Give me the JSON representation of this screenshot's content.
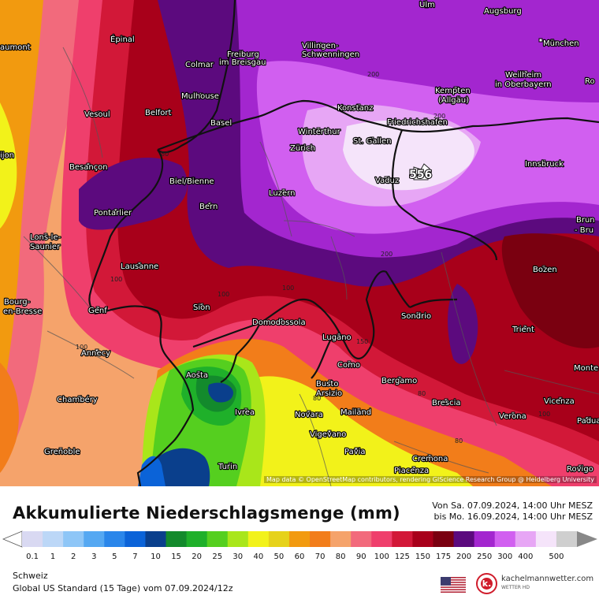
{
  "map": {
    "attribution": "Map data © OpenStreetMap contributors, rendering GIScience Research Group @ Heidelberg University",
    "max_value": "556",
    "contour_labels": [
      "200",
      "200",
      "200",
      "100",
      "100",
      "100",
      "150",
      "100",
      "80",
      "80",
      "80",
      "100",
      "80"
    ],
    "cities": [
      "Ulm",
      "Augsburg",
      "Épinal",
      "aumont",
      "Freiburg",
      "im Breisgau",
      "Villingen-",
      "Schwenningen",
      "München",
      "Colmar",
      "Weilheim",
      "in Oberbayern",
      "Ro",
      "Mulhouse",
      "Kempten",
      "(Allgäu)",
      "Vesoul",
      "Belfort",
      "Basel",
      "Konstanz",
      "Friedrichshafen",
      "Winterthur",
      "St. Gallen",
      "Zürich",
      "ijon",
      "Besançon",
      "Innsbruck",
      "Biel/Bienne",
      "Vaduz",
      "Luzern",
      "Pontarlier",
      "Bern",
      "Brun",
      "- Bru",
      "Lons-le-",
      "Saunier",
      "Lausanne",
      "Bozen",
      "Bourg-",
      "en-Bresse",
      "Sion",
      "Genf",
      "Domodossola",
      "Sondrio",
      "Trient",
      "Lugano",
      "Annecy",
      "Como",
      "Monte",
      "Bergamo",
      "Aosta",
      "Busto",
      "Arsizio",
      "Brescia",
      "Chambéry",
      "Ivrea",
      "Novara",
      "Mailand",
      "Vicenza",
      "Verona",
      "Padua",
      "Vigevano",
      "Grenoble",
      "Pavia",
      "Cremona",
      "Turin",
      "Piacenza",
      "Rovigo"
    ]
  },
  "footer": {
    "title": "Akkumulierte Niederschlagsmenge (mm)",
    "period_from": "Von Sa. 07.09.2024, 14:00 Uhr MESZ",
    "period_to": "bis Mo. 16.09.2024, 14:00 Uhr MESZ",
    "region": "Schweiz",
    "model_line": "Global US Standard (15 Tage) vom  07.09.2024/12z",
    "brand_name": "kachelmannwetter.com",
    "brand_sub": "WETTER HD",
    "brand_logo_letter": "k."
  },
  "legend": {
    "ticks": [
      "0.1",
      "1",
      "2",
      "3",
      "5",
      "7",
      "10",
      "15",
      "20",
      "25",
      "30",
      "40",
      "50",
      "60",
      "70",
      "80",
      "90",
      "100",
      "125",
      "150",
      "175",
      "200",
      "250",
      "300",
      "400",
      "500"
    ],
    "colors": [
      "#d9d9f2",
      "#bcd7f7",
      "#8ec6f7",
      "#55a8f2",
      "#2a86ea",
      "#0b63d8",
      "#0a3f8c",
      "#138a2c",
      "#1fb02a",
      "#55cf1f",
      "#a9e61a",
      "#f2f21a",
      "#e6d21a",
      "#f29a0f",
      "#f27d1a",
      "#f5a36b",
      "#f26a7c",
      "#ef3f6c",
      "#d21838",
      "#a8001a",
      "#7a0010",
      "#5c0a7e",
      "#a326cf",
      "#d15ff0",
      "#e7a6f5",
      "#f5e4fa",
      "#cfcfcf"
    ]
  }
}
